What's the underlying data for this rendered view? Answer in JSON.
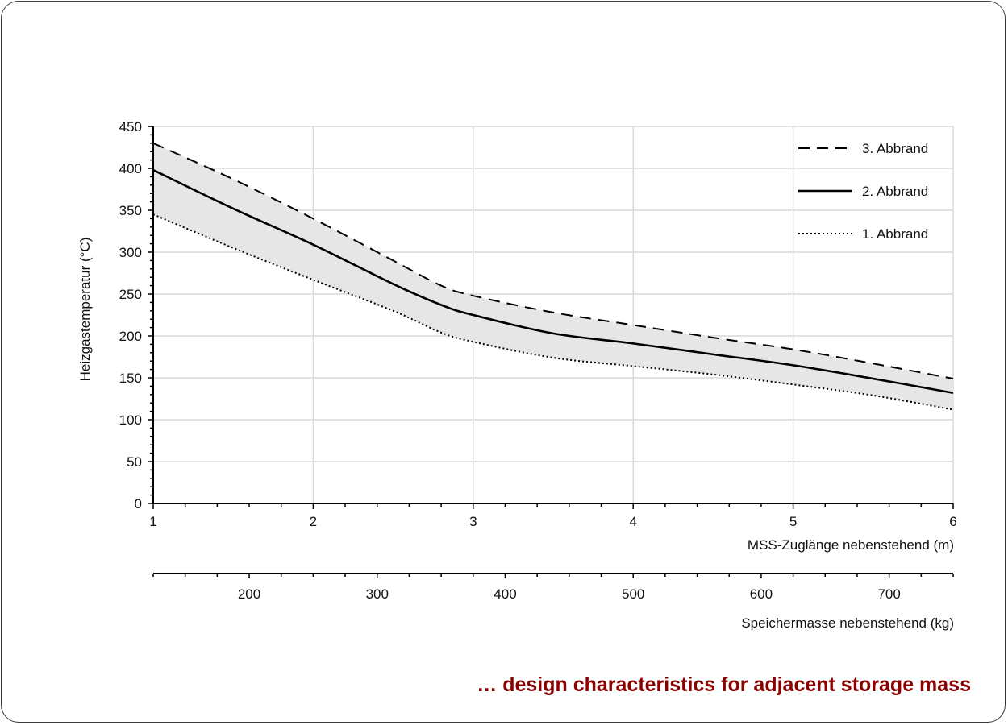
{
  "caption": "… design characteristics for adjacent storage mass",
  "colors": {
    "caption": "#8b0000",
    "band": "#e6e6e6",
    "grid": "#d9d9d9",
    "line": "#000000"
  },
  "chart_data": {
    "type": "line",
    "xlabel": "MSS-Zuglänge nebenstehend (m)",
    "ylabel": "Heizgastemperatur (°C)",
    "x2label": "Speichermasse nebenstehend (kg)",
    "xlim": [
      1,
      6
    ],
    "ylim": [
      0,
      450
    ],
    "x2lim": [
      125,
      750
    ],
    "xticks": [
      "1",
      "2",
      "3",
      "4",
      "5",
      "6"
    ],
    "yticks": [
      "0",
      "50",
      "100",
      "150",
      "200",
      "250",
      "300",
      "350",
      "400",
      "450"
    ],
    "x2ticks": [
      "200",
      "300",
      "400",
      "500",
      "600",
      "700"
    ],
    "grid": true,
    "shaded_band": "between 1. Abbrand and 3. Abbrand",
    "legend_position": "top-right",
    "series": [
      {
        "name": "3. Abbrand",
        "style": "dashed",
        "x": [
          1,
          1.5,
          2,
          2.5,
          2.8,
          3,
          3.5,
          4,
          4.5,
          5,
          5.5,
          6
        ],
        "y": [
          430,
          387,
          340,
          290,
          260,
          248,
          228,
          213,
          198,
          184,
          167,
          149
        ]
      },
      {
        "name": "2. Abbrand",
        "style": "solid",
        "x": [
          1,
          1.5,
          2,
          2.5,
          2.8,
          3,
          3.5,
          4,
          4.5,
          5,
          5.5,
          6
        ],
        "y": [
          398,
          352,
          309,
          262,
          237,
          225,
          203,
          191,
          178,
          165,
          149,
          132
        ]
      },
      {
        "name": "1. Abbrand",
        "style": "dotted",
        "x": [
          1,
          1.5,
          2,
          2.5,
          2.8,
          3,
          3.5,
          4,
          4.5,
          5,
          5.5,
          6
        ],
        "y": [
          345,
          305,
          267,
          230,
          204,
          193,
          174,
          164,
          154,
          142,
          129,
          112
        ]
      }
    ]
  }
}
